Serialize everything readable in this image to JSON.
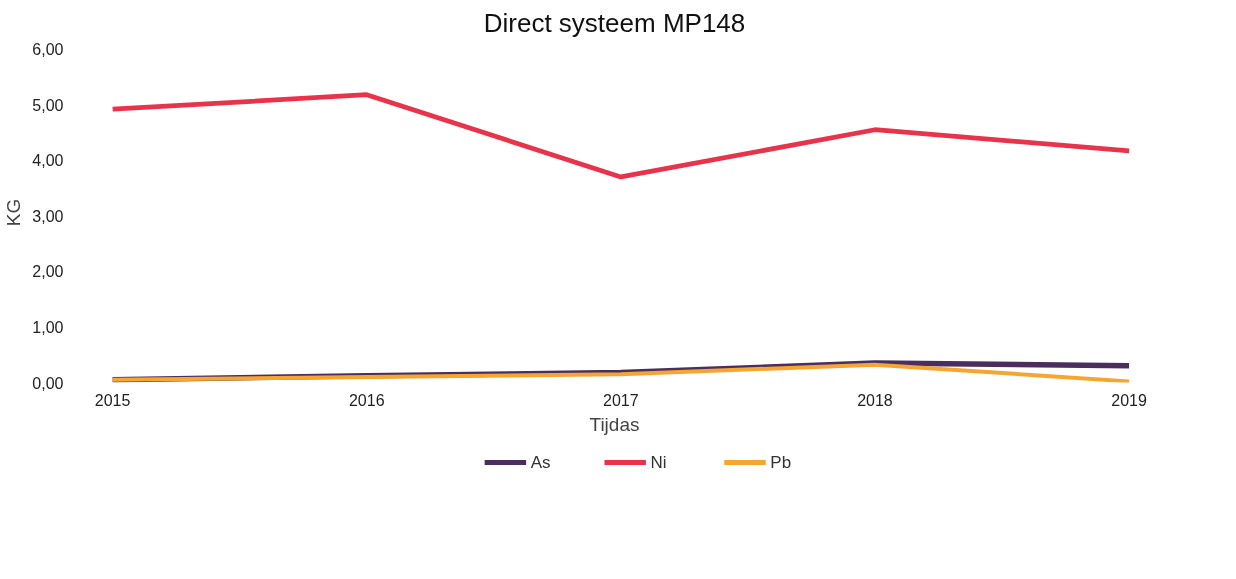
{
  "chart_data": {
    "type": "line",
    "title": "Direct systeem MP148",
    "xlabel": "Tijdas",
    "ylabel": "KG",
    "categories": [
      "2015",
      "2016",
      "2017",
      "2018",
      "2019"
    ],
    "series": [
      {
        "name": "As",
        "color": "#4b2e5e",
        "values": [
          0.05,
          0.12,
          0.18,
          0.35,
          0.3
        ]
      },
      {
        "name": "Ni",
        "color": "#e8334a",
        "values": [
          4.92,
          5.18,
          3.7,
          4.55,
          4.17
        ]
      },
      {
        "name": "Pb",
        "color": "#f7a531",
        "values": [
          0.05,
          0.1,
          0.15,
          0.32,
          0.02
        ]
      }
    ],
    "ylim": [
      0,
      6
    ],
    "yticks": [
      {
        "value": 0,
        "label": "0,00"
      },
      {
        "value": 1,
        "label": "1,00"
      },
      {
        "value": 2,
        "label": "2,00"
      },
      {
        "value": 3,
        "label": "3,00"
      },
      {
        "value": 4,
        "label": "4,00"
      },
      {
        "value": 5,
        "label": "5,00"
      },
      {
        "value": 6,
        "label": "6,00"
      }
    ],
    "grid": false,
    "legend": "bottom",
    "marker": "none",
    "line_style": "solid"
  }
}
